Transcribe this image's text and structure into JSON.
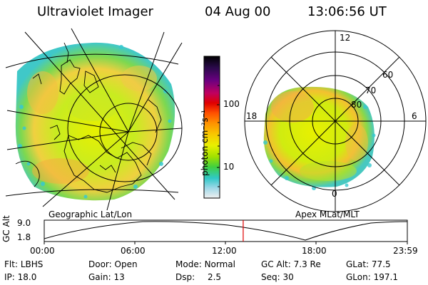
{
  "header": {
    "title": "Ultraviolet Imager",
    "date": "04 Aug 00",
    "time": "13:06:56 UT"
  },
  "colorbar": {
    "unit_label": "photon cm⁻²s⁻¹",
    "ticks": [
      "100",
      "10"
    ],
    "colors": [
      "#000000",
      "#2a0a4a",
      "#6a0080",
      "#c00060",
      "#e00000",
      "#ff5000",
      "#ff9000",
      "#f8c800",
      "#e8f000",
      "#a0e000",
      "#40d040",
      "#30c8c8",
      "#a0d8e8",
      "#f0f0f0"
    ]
  },
  "left_panel": {
    "caption": "Geographic Lat/Lon"
  },
  "right_panel": {
    "caption": "Apex MLat/MLT",
    "mlt_labels": {
      "top": "12",
      "bottom": "0",
      "left": "18",
      "right": "6"
    },
    "mlat_labels": [
      "60",
      "70",
      "80"
    ]
  },
  "altitude_plot": {
    "ylabel": "GC Alt",
    "yticks": [
      "9.0",
      "1.8"
    ],
    "xticks": [
      "00:00",
      "06:00",
      "12:00",
      "18:00",
      "23:59"
    ],
    "current_time_fraction": 0.548,
    "marker_color": "#e00000"
  },
  "status": {
    "filter": {
      "label": "Flt:",
      "value": "LBHS"
    },
    "ip": {
      "label": "IP:",
      "value": "18.0"
    },
    "door": {
      "label": "Door:",
      "value": "Open"
    },
    "gain": {
      "label": "Gain:",
      "value": "13"
    },
    "mode": {
      "label": "Mode:",
      "value": "Normal"
    },
    "dsp": {
      "label": "Dsp:",
      "value": "2.5"
    },
    "gc_alt": {
      "label": "GC Alt:",
      "value": "7.3 Re"
    },
    "seq": {
      "label": "Seq:",
      "value": "30"
    },
    "glat": {
      "label": "GLat:",
      "value": "77.5"
    },
    "glon": {
      "label": "GLon:",
      "value": "197.1"
    }
  }
}
